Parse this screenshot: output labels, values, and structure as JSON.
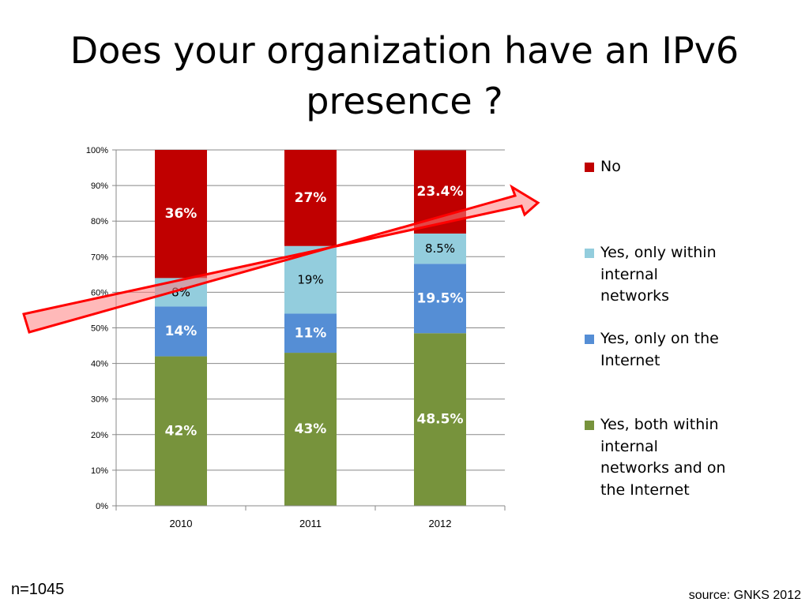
{
  "slide": {
    "title": "Does your organization have an IPv6 presence ?",
    "n_label": "n=1045",
    "source": "source: GNKS 2012"
  },
  "chart_data": {
    "type": "bar",
    "stacked": true,
    "categories": [
      "2010",
      "2011",
      "2012"
    ],
    "ylim": [
      0,
      100
    ],
    "yticks": [
      "0%",
      "10%",
      "20%",
      "30%",
      "40%",
      "50%",
      "60%",
      "70%",
      "80%",
      "90%",
      "100%"
    ],
    "grid": true,
    "legend_position": "right",
    "series": [
      {
        "name": "Yes, both within internal networks and on the Internet",
        "color": "#77933C",
        "values": [
          42,
          43,
          48.5
        ],
        "labels": [
          "42%",
          "43%",
          "48.5%"
        ],
        "label_color": "#ffffff",
        "label_bold": true
      },
      {
        "name": "Yes, only on the Internet",
        "color": "#558ED5",
        "values": [
          14,
          11,
          19.5
        ],
        "labels": [
          "14%",
          "11%",
          "19.5%"
        ],
        "label_color": "#ffffff",
        "label_bold": true
      },
      {
        "name": "Yes, only within internal networks",
        "color": "#93CDDD",
        "values": [
          8,
          19,
          8.5
        ],
        "labels": [
          "8%",
          "19%",
          "8.5%"
        ],
        "label_color": "#000000",
        "label_bold": false
      },
      {
        "name": "No",
        "color": "#C00000",
        "values": [
          36,
          27,
          23.4
        ],
        "labels": [
          "36%",
          "27%",
          "23.4%"
        ],
        "label_color": "#ffffff",
        "label_bold": true
      }
    ],
    "annotations": [
      {
        "type": "arrow",
        "description": "upward trend arrow",
        "color": "#FF0000",
        "fill": "#FF8080"
      }
    ]
  },
  "legend": [
    {
      "label": "No",
      "color": "#C00000"
    },
    {
      "label": "Yes, only within internal networks",
      "color": "#93CDDD"
    },
    {
      "label": "Yes, only on the Internet",
      "color": "#558ED5"
    },
    {
      "label": "Yes, both within internal networks and on the Internet",
      "color": "#77933C"
    }
  ]
}
